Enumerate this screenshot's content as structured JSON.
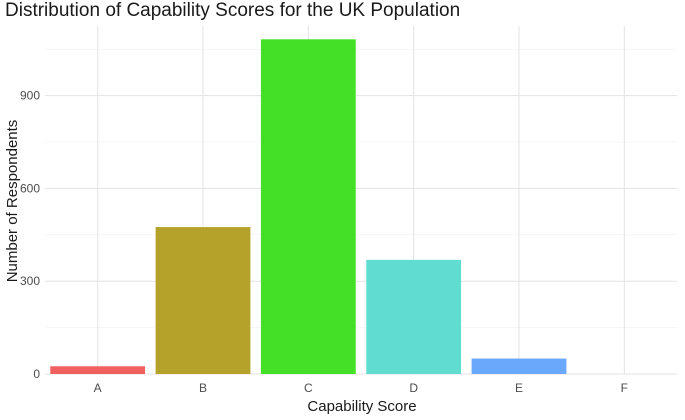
{
  "chart_data": {
    "type": "bar",
    "title": "Distribution of Capability Scores for the UK Population",
    "xlabel": "Capability Score",
    "ylabel": "Number of Respondents",
    "categories": [
      "A",
      "B",
      "C",
      "D",
      "E",
      "F"
    ],
    "values": [
      25,
      475,
      1082,
      369,
      50,
      0
    ],
    "colors": [
      "#F0605E",
      "#B5A22B",
      "#44E028",
      "#61DCD0",
      "#6AA8FB",
      "#F571E7"
    ],
    "yticks": [
      0,
      300,
      600,
      900
    ],
    "ylim": [
      0,
      1125
    ],
    "grid": true,
    "legend": "none"
  }
}
